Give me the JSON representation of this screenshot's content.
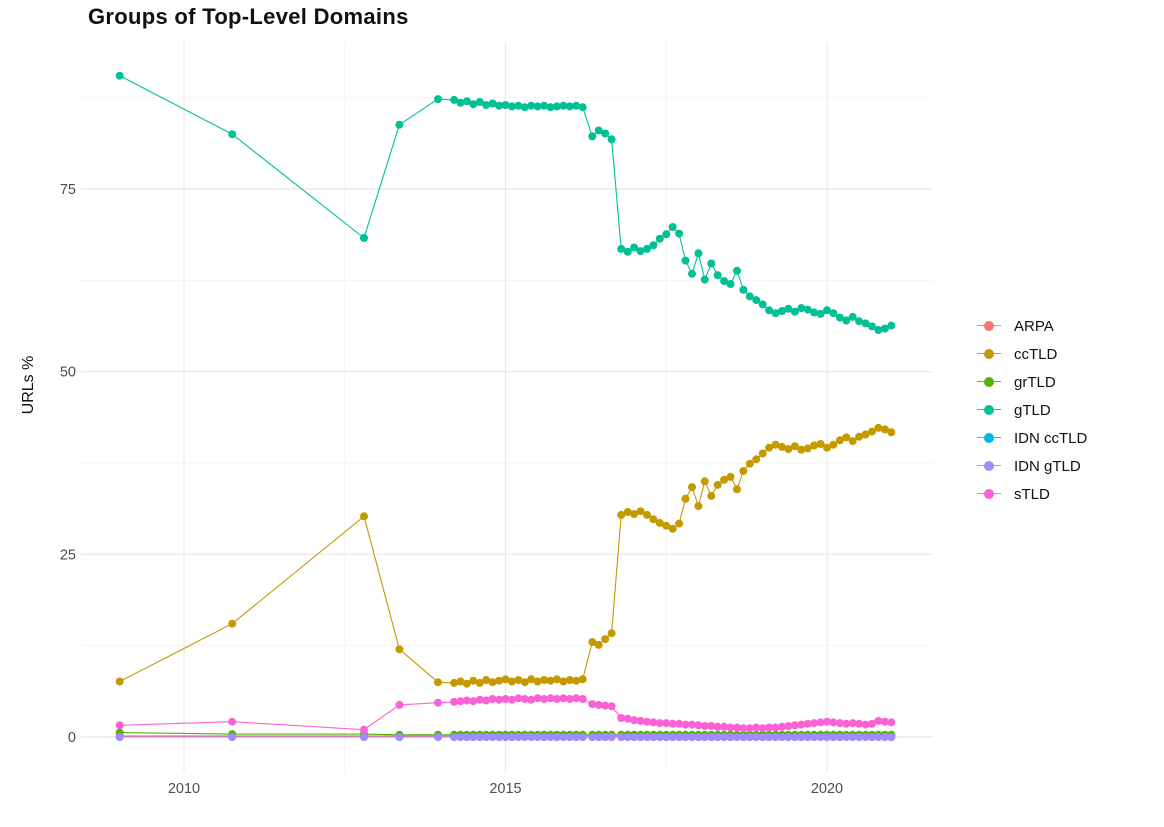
{
  "title": "Groups of Top-Level Domains",
  "axes": {
    "y_label": "URLs %",
    "x_tick_labels": [
      "2010",
      "2015",
      "2020"
    ],
    "y_tick_labels": [
      "0",
      "25",
      "50",
      "75"
    ]
  },
  "chart_data": {
    "type": "line",
    "title": "Groups of Top-Level Domains",
    "xlabel": "",
    "ylabel": "URLs %",
    "legend_position": "right",
    "grid": true,
    "x_ticks": [
      2010,
      2015,
      2020
    ],
    "x_minor_ticks": [
      2012.5,
      2017.5
    ],
    "y_ticks": [
      0,
      25,
      50,
      75
    ],
    "y_minor_ticks": [
      12.5,
      37.5,
      62.5,
      87.5
    ],
    "xlim": [
      2008.4,
      2021.65
    ],
    "ylim": [
      -4.7,
      95.2
    ],
    "x": [
      2009.0,
      2010.75,
      2012.8,
      2013.35,
      2013.95,
      2014.2,
      2014.3,
      2014.4,
      2014.5,
      2014.6,
      2014.7,
      2014.8,
      2014.9,
      2015.0,
      2015.1,
      2015.2,
      2015.3,
      2015.4,
      2015.5,
      2015.6,
      2015.7,
      2015.8,
      2015.9,
      2016.0,
      2016.1,
      2016.2,
      2016.35,
      2016.45,
      2016.55,
      2016.65,
      2016.8,
      2016.9,
      2017.0,
      2017.1,
      2017.2,
      2017.3,
      2017.4,
      2017.5,
      2017.6,
      2017.7,
      2017.8,
      2017.9,
      2018.0,
      2018.1,
      2018.2,
      2018.3,
      2018.4,
      2018.5,
      2018.6,
      2018.7,
      2018.8,
      2018.9,
      2019.0,
      2019.1,
      2019.2,
      2019.3,
      2019.4,
      2019.5,
      2019.6,
      2019.7,
      2019.8,
      2019.9,
      2020.0,
      2020.1,
      2020.2,
      2020.3,
      2020.4,
      2020.5,
      2020.6,
      2020.7,
      2020.8,
      2020.9,
      2021.0
    ],
    "series": [
      {
        "name": "ARPA",
        "color": "#F8766D",
        "values": 0.15
      },
      {
        "name": "ccTLD",
        "color": "#C49A00",
        "values": [
          7.6,
          15.5,
          30.2,
          12.0,
          7.5,
          7.4,
          7.6,
          7.3,
          7.7,
          7.4,
          7.8,
          7.5,
          7.7,
          7.9,
          7.6,
          7.8,
          7.5,
          7.9,
          7.6,
          7.8,
          7.7,
          7.9,
          7.6,
          7.8,
          7.7,
          7.9,
          13.0,
          12.6,
          13.4,
          14.2,
          30.4,
          30.8,
          30.5,
          30.9,
          30.4,
          29.8,
          29.3,
          28.9,
          28.5,
          29.2,
          32.6,
          34.2,
          31.6,
          35.0,
          33.0,
          34.5,
          35.2,
          35.6,
          33.9,
          36.4,
          37.4,
          38.0,
          38.8,
          39.6,
          40.0,
          39.7,
          39.4,
          39.8,
          39.3,
          39.5,
          39.9,
          40.1,
          39.6,
          40.0,
          40.6,
          41.0,
          40.5,
          41.1,
          41.4,
          41.8,
          42.3,
          42.1,
          41.7
        ]
      },
      {
        "name": "grTLD",
        "color": "#53B400",
        "values": [
          0.6,
          0.4,
          0.4,
          0.3,
          0.3,
          0.3,
          0.3,
          0.3,
          0.3,
          0.3,
          0.3,
          0.3,
          0.3,
          0.3,
          0.3,
          0.3,
          0.3,
          0.3,
          0.3,
          0.3,
          0.3,
          0.3,
          0.3,
          0.3,
          0.3,
          0.3,
          0.3,
          0.3,
          0.3,
          0.3,
          0.3,
          0.3,
          0.3,
          0.3,
          0.3,
          0.3,
          0.3,
          0.3,
          0.3,
          0.3,
          0.3,
          0.3,
          0.3,
          0.3,
          0.3,
          0.3,
          0.3,
          0.3,
          0.3,
          0.3,
          0.3,
          0.3,
          0.3,
          0.3,
          0.3,
          0.3,
          0.3,
          0.3,
          0.3,
          0.3,
          0.3,
          0.3,
          0.3,
          0.3,
          0.3,
          0.3,
          0.3,
          0.3,
          0.3,
          0.3,
          0.3,
          0.3,
          0.3
        ]
      },
      {
        "name": "gTLD",
        "color": "#00C094",
        "values": [
          90.5,
          82.5,
          68.3,
          83.8,
          87.3,
          87.2,
          86.8,
          87.0,
          86.6,
          86.9,
          86.5,
          86.7,
          86.4,
          86.5,
          86.3,
          86.4,
          86.2,
          86.4,
          86.3,
          86.4,
          86.2,
          86.3,
          86.4,
          86.3,
          86.4,
          86.2,
          82.2,
          83.0,
          82.6,
          81.8,
          66.8,
          66.4,
          67.0,
          66.5,
          66.8,
          67.3,
          68.2,
          68.8,
          69.8,
          68.9,
          65.2,
          63.4,
          66.2,
          62.6,
          64.8,
          63.2,
          62.4,
          62.0,
          63.8,
          61.2,
          60.3,
          59.8,
          59.2,
          58.4,
          58.0,
          58.3,
          58.6,
          58.2,
          58.7,
          58.5,
          58.1,
          57.9,
          58.4,
          58.0,
          57.4,
          57.0,
          57.5,
          56.9,
          56.6,
          56.2,
          55.7,
          55.9,
          56.3
        ]
      },
      {
        "name": "IDN ccTLD",
        "color": "#00B6EB",
        "values": 0.0
      },
      {
        "name": "IDN gTLD",
        "color": "#A58AFF",
        "values": 0.0
      },
      {
        "name": "sTLD",
        "color": "#FB61D7",
        "values": [
          1.6,
          2.1,
          1.0,
          4.4,
          4.7,
          4.8,
          4.9,
          5.0,
          4.9,
          5.1,
          5.0,
          5.2,
          5.1,
          5.2,
          5.1,
          5.3,
          5.2,
          5.1,
          5.3,
          5.2,
          5.3,
          5.2,
          5.3,
          5.2,
          5.3,
          5.2,
          4.5,
          4.4,
          4.3,
          4.2,
          2.6,
          2.5,
          2.3,
          2.2,
          2.1,
          2.0,
          1.9,
          1.9,
          1.8,
          1.8,
          1.7,
          1.7,
          1.6,
          1.5,
          1.5,
          1.4,
          1.4,
          1.3,
          1.3,
          1.2,
          1.2,
          1.3,
          1.2,
          1.3,
          1.3,
          1.4,
          1.5,
          1.6,
          1.7,
          1.8,
          1.9,
          2.0,
          2.1,
          2.0,
          1.9,
          1.8,
          1.9,
          1.8,
          1.7,
          1.8,
          2.2,
          2.1,
          2.0
        ]
      }
    ]
  },
  "style": {
    "grid_major_color": "#E8E8E8",
    "grid_minor_color": "#F3F3F3",
    "tick_label_color": "#4d4d4d"
  }
}
